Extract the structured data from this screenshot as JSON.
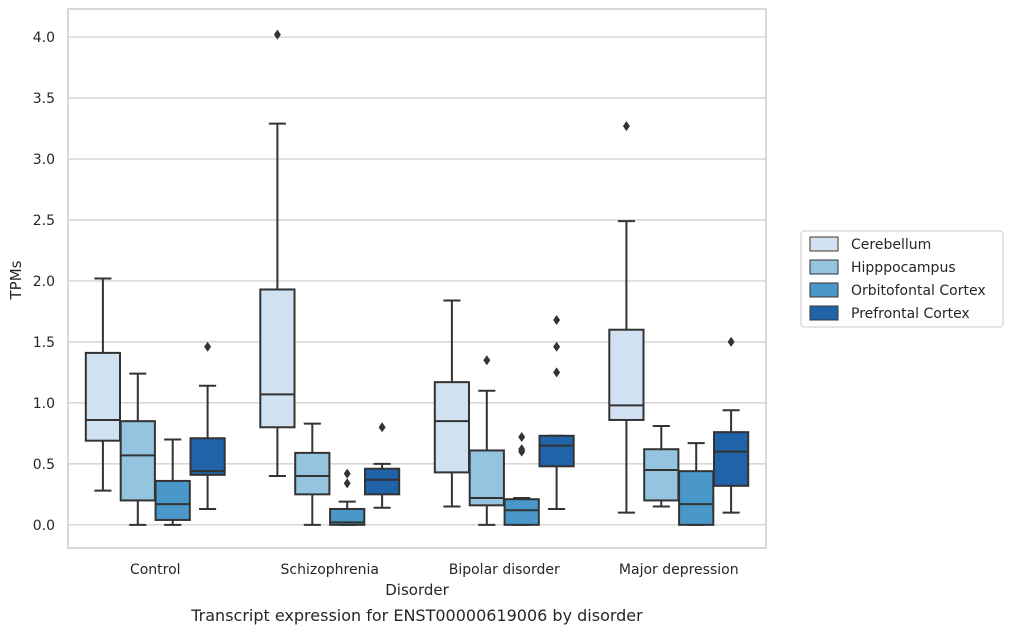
{
  "caption": "Transcript expression for ENST00000619006 by disorder",
  "chart_data": {
    "type": "box",
    "xlabel": "Disorder",
    "ylabel": "TPMs",
    "ylim": [
      -0.19,
      4.23
    ],
    "yticks": [
      "0.0",
      "0.5",
      "1.0",
      "1.5",
      "2.0",
      "2.5",
      "3.0",
      "3.5",
      "4.0"
    ],
    "grid": "horizontal",
    "legend_position": "right",
    "categories": [
      "Control",
      "Schizophrenia",
      "Bipolar disorder",
      "Major depression"
    ],
    "series": [
      {
        "name": "Cerebellum",
        "color": "#d0e2f2",
        "boxes": [
          {
            "q1": 0.69,
            "median": 0.86,
            "q3": 1.41,
            "whisker_low": 0.28,
            "whisker_high": 2.02,
            "outliers": []
          },
          {
            "q1": 0.8,
            "median": 1.07,
            "q3": 1.93,
            "whisker_low": 0.4,
            "whisker_high": 3.29,
            "outliers": [
              4.02
            ]
          },
          {
            "q1": 0.43,
            "median": 0.85,
            "q3": 1.17,
            "whisker_low": 0.15,
            "whisker_high": 1.84,
            "outliers": []
          },
          {
            "q1": 0.86,
            "median": 0.98,
            "q3": 1.6,
            "whisker_low": 0.1,
            "whisker_high": 2.49,
            "outliers": [
              3.27
            ]
          }
        ]
      },
      {
        "name": "Hipppocampus",
        "color": "#94c4df",
        "boxes": [
          {
            "q1": 0.2,
            "median": 0.57,
            "q3": 0.85,
            "whisker_low": 0.0,
            "whisker_high": 1.24,
            "outliers": []
          },
          {
            "q1": 0.25,
            "median": 0.4,
            "q3": 0.59,
            "whisker_low": 0.0,
            "whisker_high": 0.83,
            "outliers": []
          },
          {
            "q1": 0.16,
            "median": 0.22,
            "q3": 0.61,
            "whisker_low": 0.0,
            "whisker_high": 1.1,
            "outliers": [
              1.35
            ]
          },
          {
            "q1": 0.2,
            "median": 0.45,
            "q3": 0.62,
            "whisker_low": 0.15,
            "whisker_high": 0.81,
            "outliers": []
          }
        ]
      },
      {
        "name": "Orbitofontal Cortex",
        "color": "#4a98c9",
        "boxes": [
          {
            "q1": 0.04,
            "median": 0.17,
            "q3": 0.36,
            "whisker_low": 0.0,
            "whisker_high": 0.7,
            "outliers": []
          },
          {
            "q1": 0.0,
            "median": 0.02,
            "q3": 0.13,
            "whisker_low": 0.0,
            "whisker_high": 0.19,
            "outliers": [
              0.34,
              0.42
            ]
          },
          {
            "q1": 0.0,
            "median": 0.12,
            "q3": 0.21,
            "whisker_low": 0.0,
            "whisker_high": 0.22,
            "outliers": [
              0.6,
              0.62,
              0.72
            ]
          },
          {
            "q1": 0.0,
            "median": 0.17,
            "q3": 0.44,
            "whisker_low": 0.0,
            "whisker_high": 0.67,
            "outliers": []
          }
        ]
      },
      {
        "name": "Prefrontal Cortex",
        "color": "#2063a9",
        "boxes": [
          {
            "q1": 0.41,
            "median": 0.44,
            "q3": 0.71,
            "whisker_low": 0.13,
            "whisker_high": 1.14,
            "outliers": [
              1.46
            ]
          },
          {
            "q1": 0.25,
            "median": 0.37,
            "q3": 0.46,
            "whisker_low": 0.14,
            "whisker_high": 0.5,
            "outliers": [
              0.8
            ]
          },
          {
            "q1": 0.48,
            "median": 0.65,
            "q3": 0.73,
            "whisker_low": 0.13,
            "whisker_high": 0.73,
            "outliers": [
              1.25,
              1.46,
              1.68
            ]
          },
          {
            "q1": 0.32,
            "median": 0.6,
            "q3": 0.76,
            "whisker_low": 0.1,
            "whisker_high": 0.94,
            "outliers": [
              1.5
            ]
          }
        ]
      }
    ]
  }
}
